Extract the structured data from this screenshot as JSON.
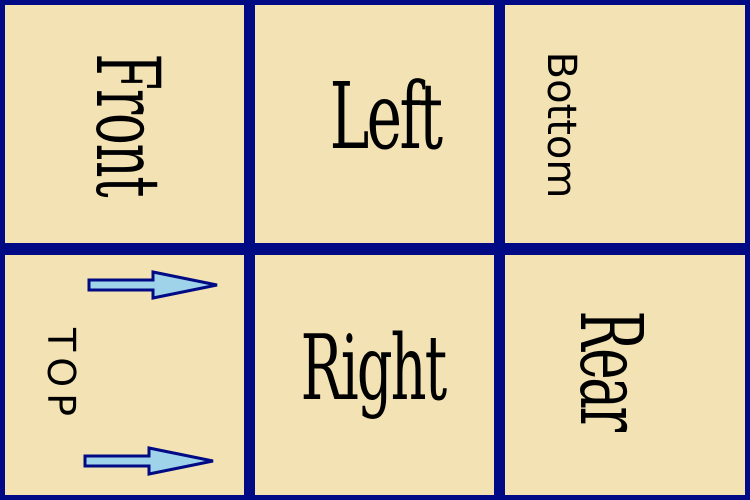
{
  "cells": {
    "front": {
      "label": "Front"
    },
    "left": {
      "label": "Left"
    },
    "bottom": {
      "label": "Bottom"
    },
    "top": {
      "label": "TOP"
    },
    "right": {
      "label": "Right"
    },
    "rear": {
      "label": "Rear"
    }
  },
  "colors": {
    "grid": "#000a85",
    "cell": "#f3e3b4",
    "arrow_fill": "#9fd3ea",
    "arrow_stroke": "#000a85"
  },
  "icons": {
    "arrow": "arrow-right-icon"
  }
}
